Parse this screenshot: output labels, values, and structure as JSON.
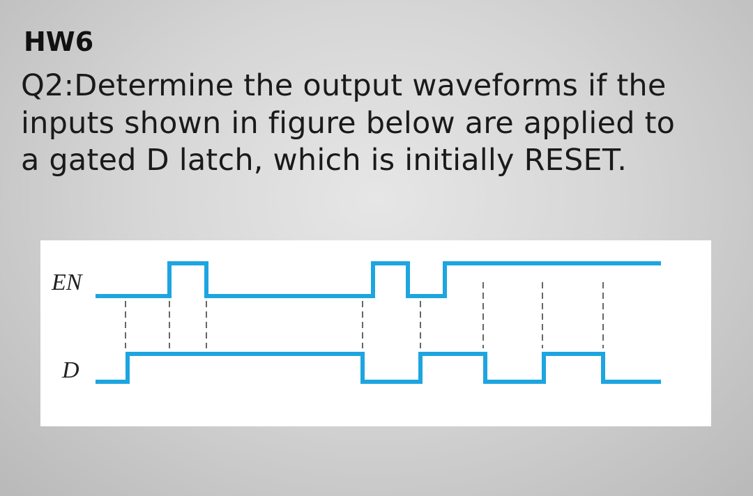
{
  "header": {
    "title": "HW6"
  },
  "question": {
    "lines": [
      "Q2:Determine the output waveforms if the",
      "inputs shown in figure below are applied to",
      "a gated D latch, which is initially RESET."
    ]
  },
  "figure": {
    "signals": [
      "EN",
      "D"
    ]
  }
}
